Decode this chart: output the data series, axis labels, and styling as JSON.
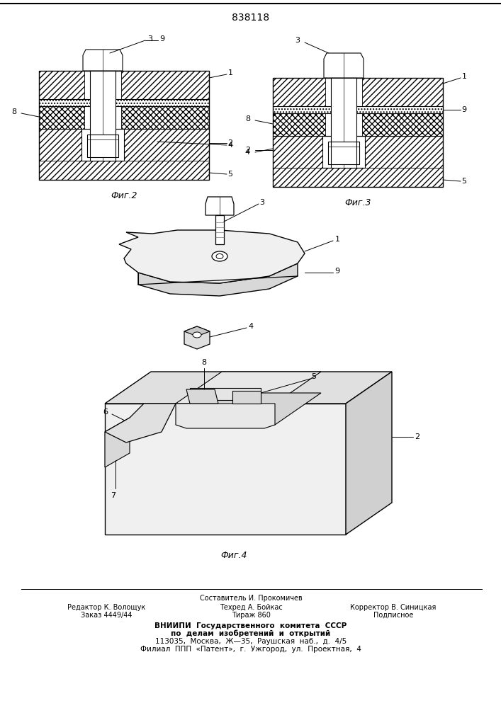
{
  "patent_number": "838118",
  "background_color": "#ffffff",
  "fig_width": 7.07,
  "fig_height": 10.0,
  "hatch_45": "////",
  "hatch_dot": "....",
  "footer_col1_line1": "Редактор К. Волощук",
  "footer_col1_line2": "Заказ 4449/44",
  "footer_col2_line0": "Составитель И. Прокомичев",
  "footer_col2_line1": "Техред А. Бойкас",
  "footer_col2_line2": "Тираж 860",
  "footer_col3_line1": "Корректор В. Синицкая",
  "footer_col3_line2": "Подписное",
  "footer_vniipи_1": "ВНИИПИ  Государственного  комитета  СССР",
  "footer_vniipи_2": "по  делам  изобретений  и  открытий",
  "footer_vniipи_3": "113035,  Москва,  Ж—35,  Раушская  наб.,  д.  4/5",
  "footer_vniipи_4": "Филиал  ППП  «Патент»,  г.  Ужгород,  ул.  Проектная,  4"
}
